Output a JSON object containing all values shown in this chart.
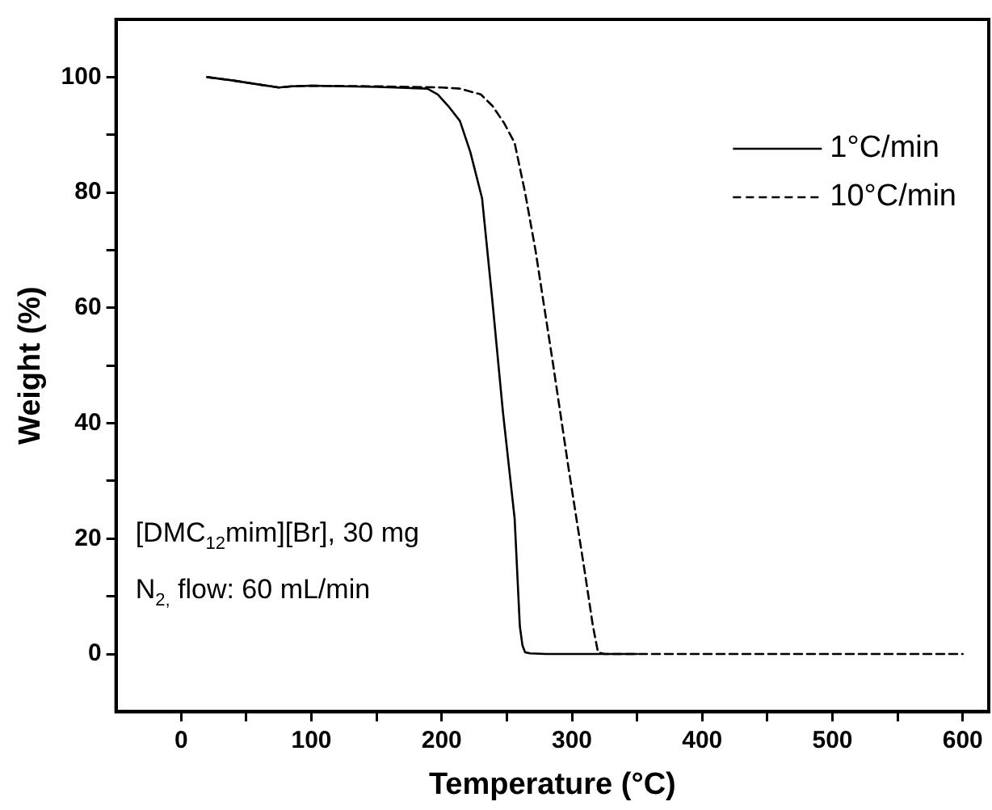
{
  "chart_data": {
    "type": "line",
    "xlabel": "Temperature (°C)",
    "ylabel": "Weight (%)",
    "xlim": [
      -50,
      620
    ],
    "ylim": [
      -10,
      110
    ],
    "xticks": [
      0,
      {
        "value": 50,
        "label": null
      },
      100,
      {
        "value": 150,
        "label": null
      },
      200,
      {
        "value": 250,
        "label": null
      },
      300,
      {
        "value": 350,
        "label": null
      },
      400,
      {
        "value": 450,
        "label": null
      },
      500,
      {
        "value": 550,
        "label": null
      },
      600
    ],
    "yticks": [
      0,
      {
        "value": 10,
        "label": null
      },
      20,
      {
        "value": 30,
        "label": null
      },
      40,
      {
        "value": 50,
        "label": null
      },
      60,
      {
        "value": 70,
        "label": null
      },
      80,
      {
        "value": 90,
        "label": null
      },
      100
    ],
    "grid": false,
    "legend": "top right",
    "marker": "none",
    "annotations": [
      "[DMC$_{12}$mim][Br], 30 mg",
      "N$_{2,}$ flow: 60 mL/min"
    ],
    "series": [
      {
        "name": "1°C/min",
        "color": "#000000",
        "line_style": "solid",
        "x": [
          20,
          40,
          60,
          75,
          85,
          100,
          150,
          189,
          197,
          205,
          214,
          222,
          231,
          239,
          247,
          256,
          260,
          262,
          264,
          268,
          280,
          300,
          350
        ],
        "values": [
          100,
          99.4,
          98.7,
          98.2,
          98.4,
          98.5,
          98.3,
          98,
          97,
          95,
          92.4,
          87,
          79,
          61,
          42,
          23.5,
          4.8,
          1.5,
          0.3,
          0.1,
          0,
          0,
          0
        ]
      },
      {
        "name": "10°C/min",
        "color": "#000000",
        "line_style": "dashed",
        "x": [
          20,
          40,
          60,
          75,
          85,
          100,
          150,
          200,
          214,
          230,
          239,
          248,
          256,
          264,
          272,
          285,
          297,
          310,
          316,
          320,
          325,
          350,
          400,
          500,
          600
        ],
        "values": [
          100,
          99.4,
          98.7,
          98.2,
          98.4,
          98.5,
          98.4,
          98.2,
          98,
          97,
          95,
          92,
          88.6,
          80,
          70,
          51,
          32.8,
          14,
          5,
          0.3,
          0,
          0,
          0,
          0,
          0
        ]
      }
    ]
  }
}
